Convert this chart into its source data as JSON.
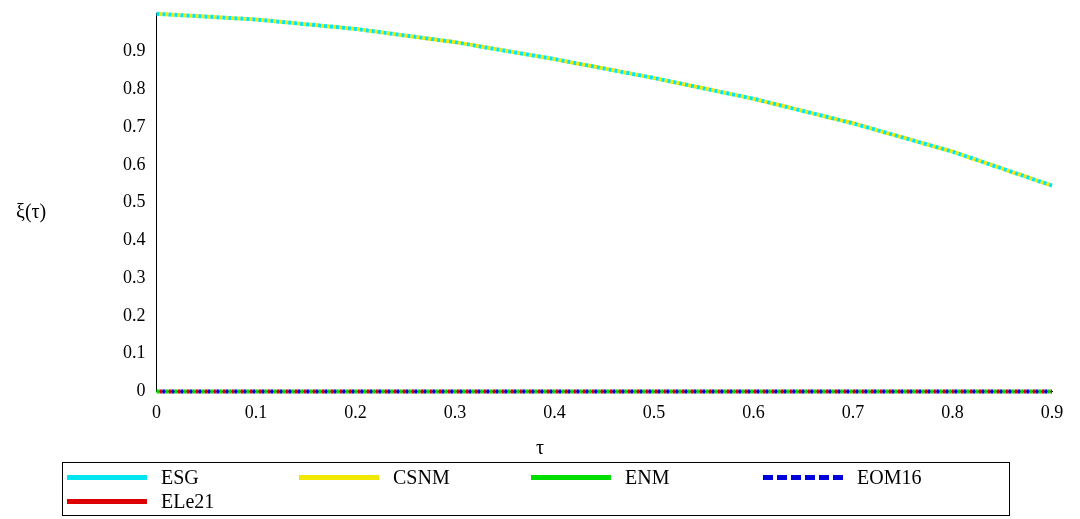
{
  "chart_data": {
    "type": "line",
    "xlabel": "τ",
    "ylabel": "ξ(τ)",
    "x": [
      0,
      0.1,
      0.2,
      0.3,
      0.4,
      0.5,
      0.6,
      0.7,
      0.8,
      0.9
    ],
    "xlim": [
      0,
      0.9
    ],
    "ylim": [
      0,
      1
    ],
    "xticks": [
      0,
      0.1,
      0.2,
      0.3,
      0.4,
      0.5,
      0.6,
      0.7,
      0.8,
      0.9
    ],
    "yticks": [
      0,
      0.1,
      0.2,
      0.3,
      0.4,
      0.5,
      0.6,
      0.7,
      0.8,
      0.9
    ],
    "grid": false,
    "legend": "bottom",
    "marker": "none",
    "series": [
      {
        "name": "ESG",
        "color": "#00e5ee",
        "line_style": "dashed",
        "values": [
          1,
          0.985,
          0.96,
          0.925,
          0.88,
          0.83,
          0.775,
          0.71,
          0.635,
          0.545
        ]
      },
      {
        "name": "CSNM",
        "color": "#f0e800",
        "line_style": "dashed",
        "values": [
          1,
          0.985,
          0.96,
          0.925,
          0.88,
          0.83,
          0.775,
          0.71,
          0.635,
          0.545
        ]
      },
      {
        "name": "ENM",
        "color": "#00dd00",
        "line_style": "dashed",
        "values": [
          0,
          0,
          0,
          0,
          0,
          0,
          0,
          0,
          0,
          0
        ]
      },
      {
        "name": "EOM16",
        "color": "#0000dd",
        "line_style": "dotted",
        "values": [
          0,
          0,
          0,
          0,
          0,
          0,
          0,
          0,
          0,
          0
        ]
      },
      {
        "name": "ELe21",
        "color": "#dd0000",
        "line_style": "dashed",
        "values": [
          0,
          0,
          0,
          0,
          0,
          0,
          0,
          0,
          0,
          0
        ]
      }
    ]
  }
}
